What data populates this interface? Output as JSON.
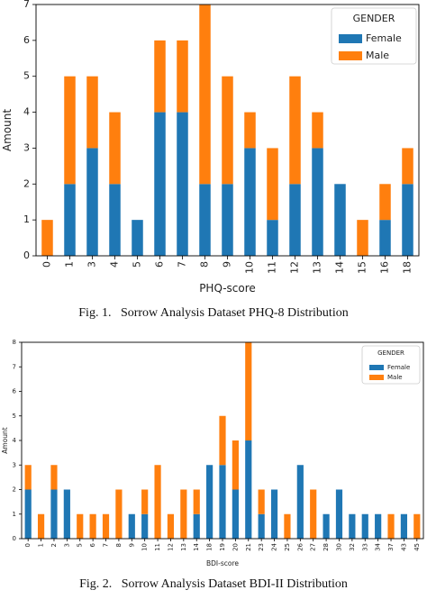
{
  "figures": [
    {
      "caption": "Fig. 1.   Sorrow Analysis Dataset PHQ-8 Distribution"
    },
    {
      "caption": "Fig. 2.   Sorrow Analysis Dataset BDI-II Distribution"
    }
  ],
  "chart_data": [
    {
      "type": "bar",
      "stacked": true,
      "xlabel": "PHQ-score",
      "ylabel": "Amount",
      "ylim": [
        0,
        7
      ],
      "yticks": [
        0,
        1,
        2,
        3,
        4,
        5,
        6,
        7
      ],
      "grid": false,
      "legend": {
        "title": "GENDER",
        "placement": "top-right"
      },
      "categories": [
        "0",
        "1",
        "3",
        "4",
        "5",
        "6",
        "7",
        "8",
        "9",
        "10",
        "11",
        "12",
        "13",
        "14",
        "15",
        "16",
        "18"
      ],
      "series": [
        {
          "name": "Female",
          "color": "#1f77b4",
          "values": [
            0,
            2,
            3,
            2,
            1,
            4,
            4,
            2,
            2,
            3,
            1,
            2,
            3,
            2,
            0,
            1,
            2
          ]
        },
        {
          "name": "Male",
          "color": "#ff7f0e",
          "values": [
            1,
            3,
            2,
            2,
            0,
            2,
            2,
            5,
            3,
            1,
            2,
            3,
            1,
            0,
            1,
            1,
            1
          ]
        }
      ]
    },
    {
      "type": "bar",
      "stacked": true,
      "xlabel": "BDI-score",
      "ylabel": "Amount",
      "ylim": [
        0,
        8
      ],
      "yticks": [
        0,
        1,
        2,
        3,
        4,
        5,
        6,
        7,
        8
      ],
      "grid": false,
      "legend": {
        "title": "GENDER",
        "placement": "top-right"
      },
      "categories": [
        "0",
        "1",
        "2",
        "3",
        "5",
        "6",
        "7",
        "8",
        "9",
        "10",
        "11",
        "12",
        "13",
        "14",
        "18",
        "19",
        "20",
        "21",
        "23",
        "24",
        "25",
        "26",
        "27",
        "28",
        "30",
        "32",
        "33",
        "34",
        "37",
        "43",
        "45"
      ],
      "series": [
        {
          "name": "Female",
          "color": "#1f77b4",
          "values": [
            2,
            0,
            2,
            2,
            0,
            0,
            0,
            0,
            1,
            1,
            0,
            0,
            0,
            1,
            3,
            3,
            2,
            4,
            1,
            2,
            0,
            3,
            0,
            1,
            2,
            1,
            1,
            1,
            0,
            1,
            0
          ]
        },
        {
          "name": "Male",
          "color": "#ff7f0e",
          "values": [
            1,
            1,
            1,
            0,
            1,
            1,
            1,
            2,
            0,
            1,
            3,
            1,
            2,
            1,
            0,
            2,
            2,
            4,
            1,
            0,
            1,
            0,
            2,
            0,
            0,
            0,
            0,
            0,
            1,
            0,
            1
          ]
        }
      ]
    }
  ]
}
